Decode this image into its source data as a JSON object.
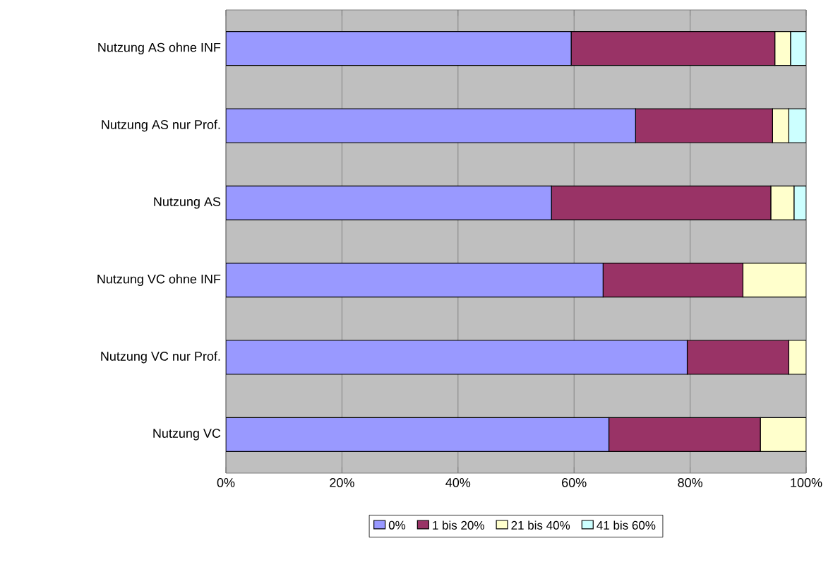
{
  "chart_data": {
    "type": "bar",
    "orientation": "horizontal",
    "stacked": true,
    "categories": [
      "Nutzung AS ohne INF",
      "Nutzung AS nur Prof.",
      "Nutzung AS",
      "Nutzung VC ohne INF",
      "Nutzung VC nur Prof.",
      "Nutzung VC"
    ],
    "series": [
      {
        "name": "0%",
        "color": "#9999ff",
        "values": [
          59.5,
          70.6,
          56.1,
          65.0,
          79.5,
          66.0
        ]
      },
      {
        "name": "1 bis 20%",
        "color": "#993366",
        "values": [
          35.1,
          23.6,
          37.8,
          24.1,
          17.5,
          26.1
        ]
      },
      {
        "name": "21 bis 40%",
        "color": "#ffffcc",
        "values": [
          2.7,
          2.8,
          4.0,
          10.9,
          3.0,
          7.9
        ]
      },
      {
        "name": "41 bis 60%",
        "color": "#ccffff",
        "values": [
          2.7,
          3.0,
          2.1,
          null,
          null,
          null
        ]
      }
    ],
    "xlim": [
      0,
      100
    ],
    "xticks": [
      {
        "value": 0,
        "label": "0%"
      },
      {
        "value": 20,
        "label": "20%"
      },
      {
        "value": 40,
        "label": "40%"
      },
      {
        "value": 60,
        "label": "60%"
      },
      {
        "value": 80,
        "label": "80%"
      },
      {
        "value": 100,
        "label": "100%"
      }
    ],
    "grid": "x",
    "legend": "bottom"
  }
}
